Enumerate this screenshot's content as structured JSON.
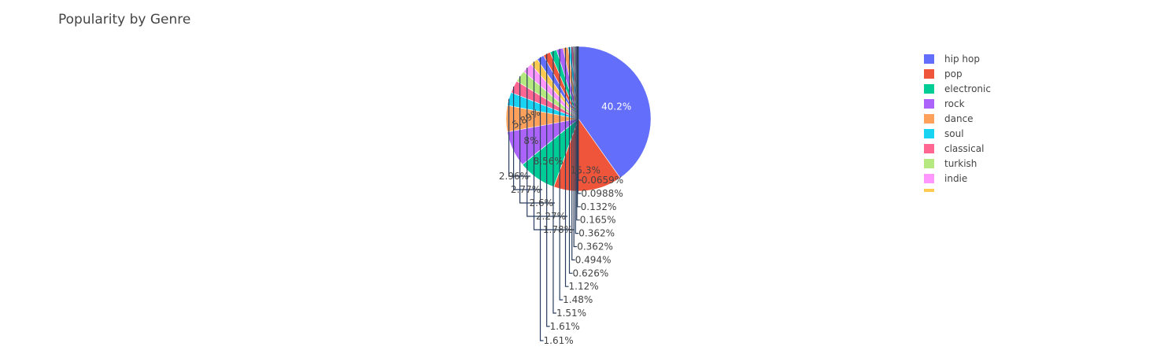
{
  "chart_data": {
    "type": "pie",
    "title": "Popularity by Genre",
    "legend_position": "top-right",
    "slices": [
      {
        "label": "hip hop",
        "value": 40.2,
        "text": "40.2%",
        "color": "#636efa"
      },
      {
        "label": "pop",
        "value": 15.3,
        "text": "15.3%",
        "color": "#EF553B"
      },
      {
        "label": "electronic",
        "value": 8.56,
        "text": "8.56%",
        "color": "#00cc96"
      },
      {
        "label": "rock",
        "value": 8.0,
        "text": "8%",
        "color": "#ab63fa"
      },
      {
        "label": "dance",
        "value": 5.89,
        "text": "5.89%",
        "color": "#FFA15A"
      },
      {
        "label": "soul",
        "value": 2.96,
        "text": "2.96%",
        "color": "#19d3f3"
      },
      {
        "label": "classical",
        "value": 2.77,
        "text": "2.77%",
        "color": "#FF6692"
      },
      {
        "label": "turkish",
        "value": 2.6,
        "text": "2.6%",
        "color": "#B6E880"
      },
      {
        "label": "indie",
        "value": 2.27,
        "text": "2.27%",
        "color": "#FF97FF"
      },
      {
        "label": "",
        "value": 1.78,
        "text": "1.78%",
        "color": "#FECB52"
      },
      {
        "label": "",
        "value": 1.61,
        "text": "1.61%",
        "color": "#636efa"
      },
      {
        "label": "",
        "value": 1.61,
        "text": "1.61%",
        "color": "#EF553B"
      },
      {
        "label": "",
        "value": 1.51,
        "text": "1.51%",
        "color": "#00cc96"
      },
      {
        "label": "",
        "value": 1.48,
        "text": "1.48%",
        "color": "#ab63fa"
      },
      {
        "label": "",
        "value": 1.12,
        "text": "1.12%",
        "color": "#FFA15A"
      },
      {
        "label": "",
        "value": 0.626,
        "text": "0.626%",
        "color": "#19d3f3"
      },
      {
        "label": "",
        "value": 0.494,
        "text": "0.494%",
        "color": "#FF6692"
      },
      {
        "label": "",
        "value": 0.362,
        "text": "0.362%",
        "color": "#B6E880"
      },
      {
        "label": "",
        "value": 0.362,
        "text": "0.362%",
        "color": "#FF97FF"
      },
      {
        "label": "",
        "value": 0.165,
        "text": "0.165%",
        "color": "#FECB52"
      },
      {
        "label": "",
        "value": 0.132,
        "text": "0.132%",
        "color": "#636efa"
      },
      {
        "label": "",
        "value": 0.0988,
        "text": "0.0988%",
        "color": "#EF553B"
      },
      {
        "label": "",
        "value": 0.0659,
        "text": "0.0659%",
        "color": "#00cc96"
      }
    ]
  }
}
